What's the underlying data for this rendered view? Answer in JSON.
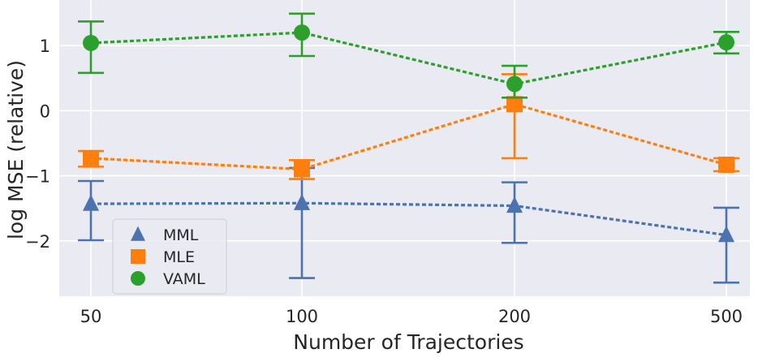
{
  "chart_data": {
    "type": "line",
    "title": "",
    "xlabel": "Number of Trajectories",
    "ylabel": "log MSE (relative)",
    "categories": [
      "50",
      "100",
      "200",
      "500"
    ],
    "ylim": [
      -2.85,
      1.7
    ],
    "yticks": [
      -2,
      -1,
      0,
      1
    ],
    "ytick_labels": [
      "−2",
      "−1",
      "0",
      "1"
    ],
    "grid": true,
    "background": "#eaeaf2",
    "legend_position": "bottom-left",
    "series": [
      {
        "name": "MML",
        "marker": "triangle",
        "color": "#4c72b0",
        "values": [
          -1.43,
          -1.42,
          -1.46,
          -1.91
        ],
        "error_low": [
          -1.99,
          -2.57,
          -2.03,
          -2.64
        ],
        "error_high": [
          -1.08,
          -0.88,
          -1.1,
          -1.49
        ]
      },
      {
        "name": "MLE",
        "marker": "square",
        "color": "#ff7f0e",
        "values": [
          -0.73,
          -0.9,
          0.1,
          -0.83
        ],
        "error_low": [
          -0.86,
          -1.05,
          -0.73,
          -0.93
        ],
        "error_high": [
          -0.62,
          -0.76,
          0.56,
          -0.73
        ]
      },
      {
        "name": "VAML",
        "marker": "circle",
        "color": "#2ca02c",
        "values": [
          1.04,
          1.2,
          0.41,
          1.05
        ],
        "error_low": [
          0.58,
          0.84,
          0.2,
          0.88
        ],
        "error_high": [
          1.37,
          1.49,
          0.69,
          1.21
        ]
      }
    ]
  }
}
